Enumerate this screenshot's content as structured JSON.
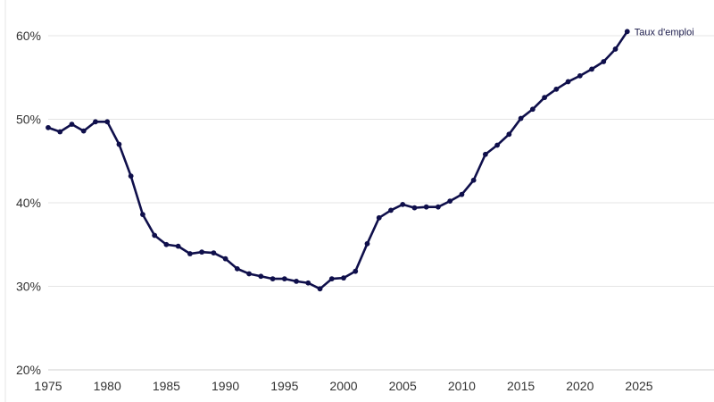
{
  "chart_data": {
    "type": "line",
    "title": "",
    "xlabel": "",
    "ylabel": "",
    "xlim": [
      1975,
      2025
    ],
    "ylim": [
      20,
      60
    ],
    "x_ticks": [
      1975,
      1980,
      1985,
      1990,
      1995,
      2000,
      2005,
      2010,
      2015,
      2020,
      2025
    ],
    "x_tick_labels": [
      "1975",
      "1980",
      "1985",
      "1990",
      "1995",
      "2000",
      "2005",
      "2010",
      "2015",
      "2020",
      "2025"
    ],
    "y_ticks": [
      20,
      30,
      40,
      50,
      60
    ],
    "y_tick_labels": [
      "20%",
      "30%",
      "40%",
      "50%",
      "60%"
    ],
    "grid": true,
    "colors": {
      "series": "#0f0f4b",
      "grid": "#e4e4e4",
      "axis": "#cfcfcf"
    },
    "series": [
      {
        "name": "Taux d'emploi",
        "x": [
          1975,
          1976,
          1977,
          1978,
          1979,
          1980,
          1981,
          1982,
          1983,
          1984,
          1985,
          1986,
          1987,
          1988,
          1989,
          1990,
          1991,
          1992,
          1993,
          1994,
          1995,
          1996,
          1997,
          1998,
          1999,
          2000,
          2001,
          2002,
          2003,
          2004,
          2005,
          2006,
          2007,
          2008,
          2009,
          2010,
          2011,
          2012,
          2013,
          2014,
          2015,
          2016,
          2017,
          2018,
          2019,
          2020,
          2021,
          2022,
          2023,
          2024
        ],
        "values": [
          49.0,
          48.5,
          49.4,
          48.6,
          49.7,
          49.7,
          47.0,
          43.2,
          38.6,
          36.1,
          35.0,
          34.8,
          33.9,
          34.1,
          34.0,
          33.3,
          32.1,
          31.5,
          31.2,
          30.9,
          30.9,
          30.6,
          30.4,
          29.7,
          30.9,
          31.0,
          31.8,
          35.1,
          38.2,
          39.1,
          39.8,
          39.4,
          39.5,
          39.5,
          40.2,
          41.0,
          42.7,
          45.8,
          46.9,
          48.2,
          50.1,
          51.2,
          52.6,
          53.6,
          54.5,
          55.2,
          56.0,
          56.9,
          58.4,
          60.5
        ]
      }
    ]
  }
}
